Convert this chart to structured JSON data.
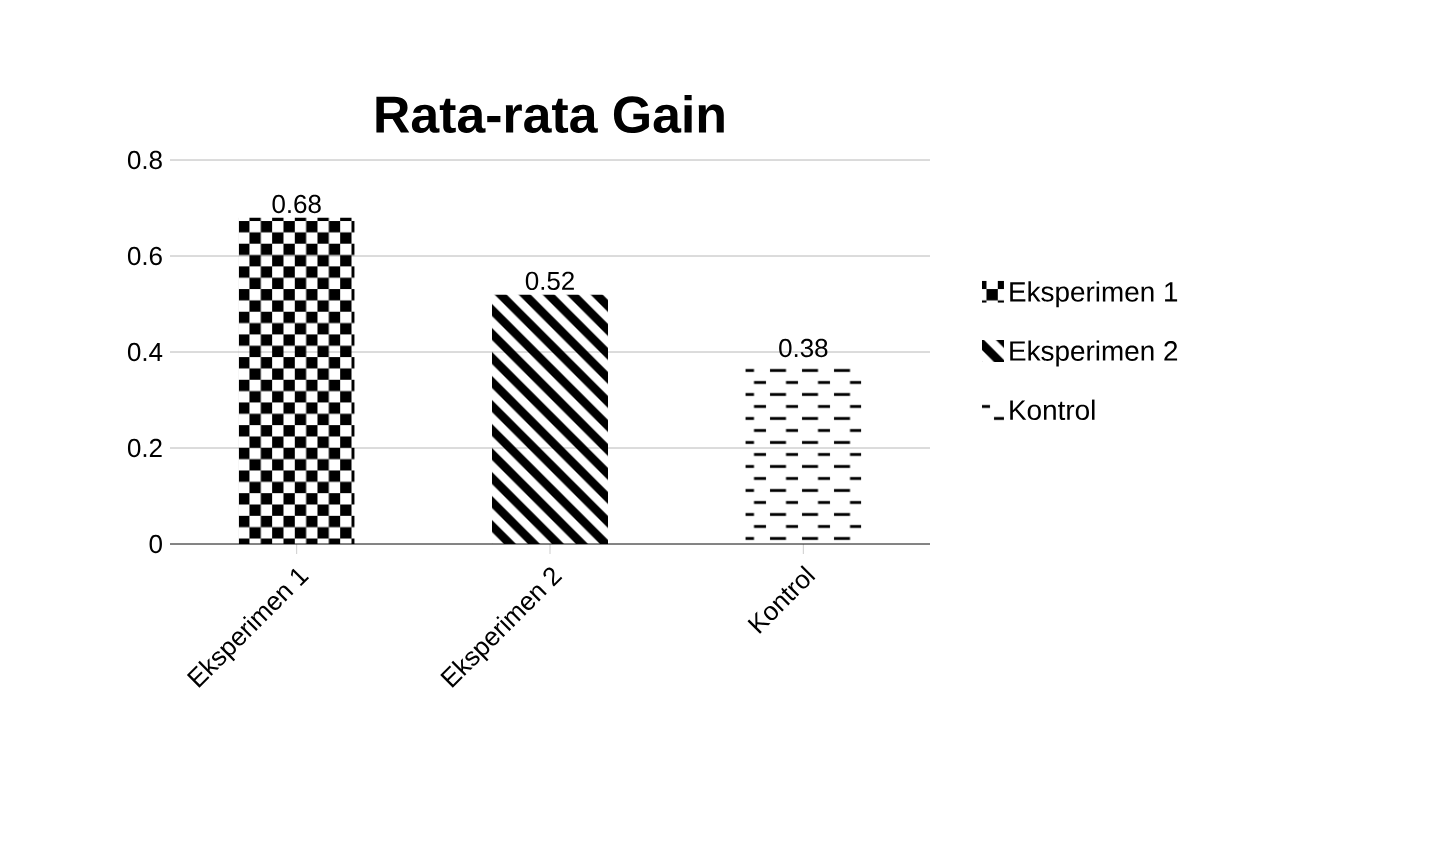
{
  "chart_data": {
    "type": "bar",
    "title": "Rata-rata Gain",
    "categories": [
      "Eksperimen 1",
      "Eksperimen 2",
      "Kontrol"
    ],
    "series": [
      {
        "name": "Eksperimen 1",
        "color": "#000000",
        "values": [
          0.68,
          null,
          null
        ]
      },
      {
        "name": "Eksperimen 2",
        "color": "#000000",
        "values": [
          null,
          0.52,
          null
        ]
      },
      {
        "name": "Kontrol",
        "color": "#000000",
        "values": [
          null,
          null,
          0.38
        ]
      }
    ],
    "ylim": [
      0,
      0.8
    ],
    "yticks": [
      0,
      0.2,
      0.4,
      0.6,
      0.8
    ],
    "grid": "y",
    "legend": "right",
    "data_labels": true
  }
}
